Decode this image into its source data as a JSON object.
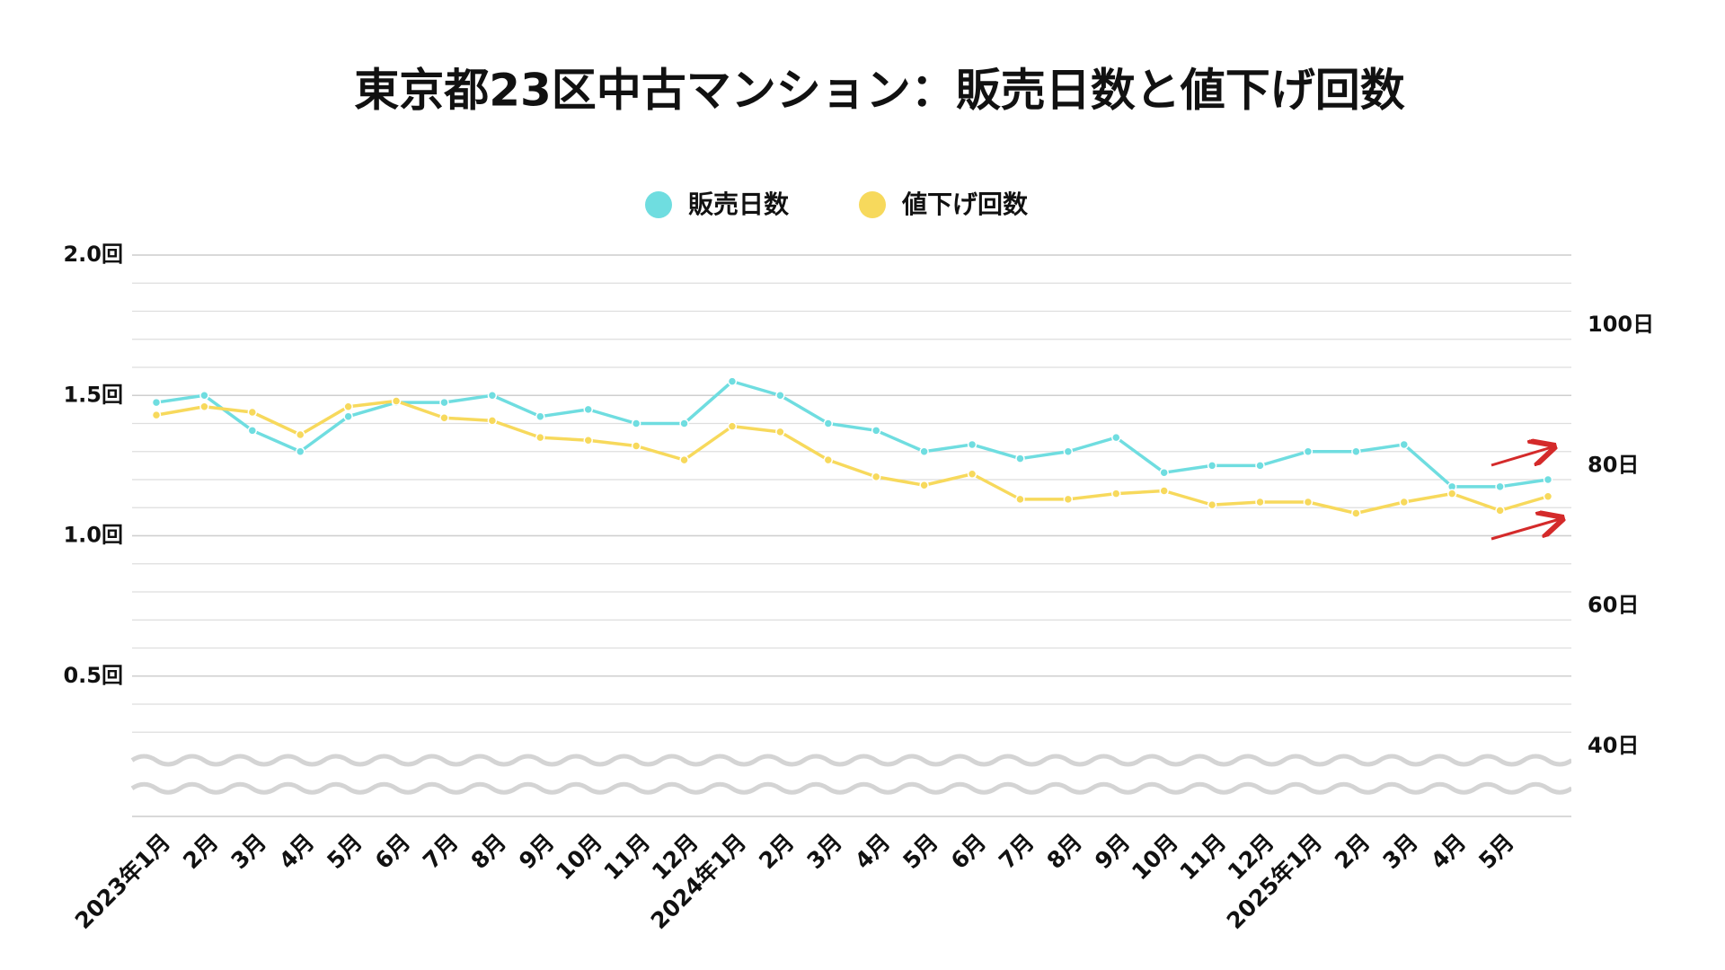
{
  "chart_data": {
    "type": "line",
    "title": "東京都23区中古マンション：販売日数と値下げ回数",
    "categories": [
      "2023年1月",
      "2月",
      "3月",
      "4月",
      "5月",
      "6月",
      "7月",
      "8月",
      "9月",
      "10月",
      "11月",
      "12月",
      "2024年1月",
      "2月",
      "3月",
      "4月",
      "5月",
      "6月",
      "7月",
      "8月",
      "9月",
      "10月",
      "11月",
      "12月",
      "2025年1月",
      "2月",
      "3月",
      "4月",
      "5月",
      null
    ],
    "series": [
      {
        "name": "販売日数",
        "color": "#6fdde0",
        "axis": "y2",
        "values": [
          89,
          90,
          85,
          82,
          87,
          89,
          89,
          90,
          87,
          88,
          86,
          86,
          92,
          90,
          86,
          85,
          82,
          83,
          81,
          82,
          84,
          79,
          80,
          80,
          82,
          82,
          83,
          77,
          77,
          78
        ]
      },
      {
        "name": "値下げ回数",
        "color": "#f7d95c",
        "axis": "y",
        "values": [
          1.43,
          1.46,
          1.44,
          1.36,
          1.46,
          1.48,
          1.42,
          1.41,
          1.35,
          1.34,
          1.32,
          1.27,
          1.39,
          1.37,
          1.27,
          1.21,
          1.18,
          1.22,
          1.13,
          1.13,
          1.15,
          1.16,
          1.11,
          1.12,
          1.12,
          1.08,
          1.12,
          1.15,
          1.09,
          1.14
        ]
      }
    ],
    "ylim": [
      0,
      2
    ],
    "yticks": [
      {
        "value": 0.5,
        "label": "0.5回"
      },
      {
        "value": 1,
        "label": "1.0回"
      },
      {
        "value": 1.5,
        "label": "1.5回"
      },
      {
        "value": 2,
        "label": "2.0回"
      }
    ],
    "y2lim": [
      30,
      110
    ],
    "y2ticks": [
      {
        "value": 40,
        "label": "40日"
      },
      {
        "value": 60,
        "label": "60日"
      },
      {
        "value": 80,
        "label": "80日"
      },
      {
        "value": 100,
        "label": "100日"
      }
    ],
    "grid": true,
    "legend": "top"
  }
}
